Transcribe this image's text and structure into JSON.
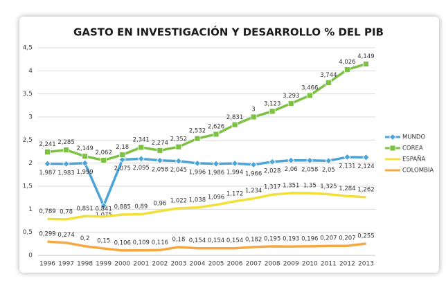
{
  "chart_data": {
    "type": "line",
    "title": "GASTO EN INVESTIGACIÓN Y DESARROLLO % DEL PIB",
    "categories": [
      "1996",
      "1997",
      "1998",
      "1999",
      "2000",
      "2001",
      "2002",
      "2003",
      "2004",
      "2005",
      "2006",
      "2007",
      "2008",
      "2009",
      "2010",
      "2011",
      "2012",
      "2013"
    ],
    "ylim": [
      0,
      4.5
    ],
    "yticks": [
      0,
      {
        "value": 0.5,
        "label": "0,5"
      },
      1,
      {
        "value": 1.5,
        "label": "1,5"
      },
      2,
      {
        "value": 2.5,
        "label": "2,5"
      },
      3,
      {
        "value": 3.5,
        "label": "3,5"
      },
      4,
      {
        "value": 4.5,
        "label": "4,5"
      }
    ],
    "grid": true,
    "legend": "right",
    "series": [
      {
        "name": "MUNDO",
        "color": "#4ba3d6",
        "marker": "diamond",
        "values": [
          1.987,
          1.983,
          1.999,
          1.075,
          2.075,
          2.095,
          2.058,
          2.045,
          1.996,
          1.986,
          1.994,
          1.966,
          2.028,
          2.06,
          2.058,
          2.05,
          2.131,
          2.124
        ],
        "value_labels": [
          "1,987",
          "1,983",
          "1,999",
          "1,075",
          "2,075",
          "2,095",
          "2,058",
          "2,045",
          "1,996",
          "1,986",
          "1,994",
          "1,966",
          "2,028",
          "2,06",
          "2,058",
          "2,05",
          "2,131",
          "2,124"
        ]
      },
      {
        "name": "COREA",
        "color": "#7cc142",
        "marker": "square",
        "values": [
          2.241,
          2.285,
          2.149,
          2.062,
          2.18,
          2.341,
          2.274,
          2.352,
          2.532,
          2.626,
          2.831,
          3,
          3.123,
          3.293,
          3.466,
          3.744,
          4.026,
          4.149
        ],
        "value_labels": [
          "2,241",
          "2,285",
          "2,149",
          "2,062",
          "2,18",
          "2,341",
          "2,274",
          "2,352",
          "2,532",
          "2,626",
          "2,831",
          "3",
          "3,123",
          "3,293",
          "3,466",
          "3,744",
          "4,026",
          "4,149"
        ]
      },
      {
        "name": "ESPAÑA",
        "color": "#f2e03a",
        "marker": "none",
        "values": [
          0.789,
          0.78,
          0.851,
          0.841,
          0.885,
          0.89,
          0.96,
          1.022,
          1.038,
          1.096,
          1.172,
          1.234,
          1.317,
          1.351,
          1.35,
          1.325,
          1.284,
          1.262
        ],
        "value_labels": [
          "0,789",
          "0,78",
          "0,851",
          "0,841",
          "0,885",
          "0,89",
          "0,96",
          "1,022",
          "1,038",
          "1,096",
          "1,172",
          "1,234",
          "1,317",
          "1,351",
          "1,35",
          "1,325",
          "1,284",
          "1,262"
        ]
      },
      {
        "name": "COLOMBIA",
        "color": "#f5a742",
        "marker": "none",
        "values": [
          0.299,
          0.274,
          0.2,
          0.15,
          0.106,
          0.109,
          0.116,
          0.18,
          0.154,
          0.154,
          0.154,
          0.182,
          0.195,
          0.193,
          0.196,
          0.207,
          0.207,
          0.255
        ],
        "value_labels": [
          "0,299",
          "0,274",
          "0,2",
          "0,15",
          "0,106",
          "0,109",
          "0,116",
          "0,18",
          "0,154",
          "0,154",
          "0,154",
          "0,182",
          "0,195",
          "0,193",
          "0,196",
          "0,207",
          "0,207",
          "0,255"
        ]
      }
    ]
  }
}
